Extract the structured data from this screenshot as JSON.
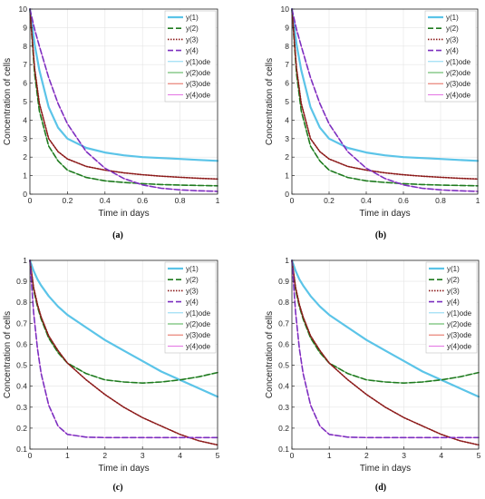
{
  "legend_entries": [
    "y(1)",
    "y(2)",
    "y(3)",
    "y(4)",
    "y(1)ode",
    "y(2)ode",
    "y(3)ode",
    "y(4)ode"
  ],
  "series_style": {
    "colors": [
      "#5bc4e8",
      "#1f7a1f",
      "#8b1a1a",
      "#7b2fbf",
      "#76d0f0",
      "#4caf50",
      "#e05040",
      "#e060e0"
    ],
    "dashes": [
      "",
      "6,3",
      "1.5,1.5",
      "6,3",
      "",
      "",
      "",
      ""
    ]
  },
  "chart_data": [
    {
      "type": "line",
      "caption": "(a)",
      "xlabel": "Time in days",
      "ylabel": "Concentration of cells",
      "xlim": [
        0,
        1
      ],
      "ylim": [
        0,
        10
      ],
      "xticks": [
        "0",
        "0.2",
        "0.4",
        "0.6",
        "0.8",
        "1"
      ],
      "yticks": [
        "0",
        "1",
        "2",
        "3",
        "4",
        "5",
        "6",
        "7",
        "8",
        "9",
        "10"
      ],
      "grid": true,
      "legend": "top-right",
      "x": [
        0,
        0.025,
        0.05,
        0.1,
        0.15,
        0.2,
        0.3,
        0.4,
        0.5,
        0.6,
        0.7,
        0.8,
        0.9,
        1.0
      ],
      "series": [
        {
          "name": "y(1)",
          "values": [
            10,
            8.1,
            6.7,
            4.7,
            3.6,
            3.0,
            2.5,
            2.25,
            2.1,
            2.0,
            1.95,
            1.9,
            1.85,
            1.8
          ]
        },
        {
          "name": "y(2)",
          "values": [
            10,
            6.5,
            4.5,
            2.6,
            1.8,
            1.3,
            0.9,
            0.72,
            0.63,
            0.57,
            0.52,
            0.49,
            0.47,
            0.45
          ]
        },
        {
          "name": "y(3)",
          "values": [
            10,
            6.8,
            4.9,
            3.0,
            2.3,
            1.9,
            1.5,
            1.3,
            1.15,
            1.05,
            0.97,
            0.91,
            0.86,
            0.82
          ]
        },
        {
          "name": "y(4)",
          "values": [
            10,
            8.9,
            8.0,
            6.3,
            4.9,
            3.8,
            2.3,
            1.4,
            0.85,
            0.5,
            0.32,
            0.23,
            0.18,
            0.15
          ]
        },
        {
          "name": "y(1)ode",
          "values": [
            10,
            8.1,
            6.7,
            4.7,
            3.6,
            3.0,
            2.5,
            2.25,
            2.1,
            2.0,
            1.95,
            1.9,
            1.85,
            1.8
          ]
        },
        {
          "name": "y(2)ode",
          "values": [
            10,
            6.5,
            4.5,
            2.6,
            1.8,
            1.3,
            0.9,
            0.72,
            0.63,
            0.57,
            0.52,
            0.49,
            0.47,
            0.45
          ]
        },
        {
          "name": "y(3)ode",
          "values": [
            10,
            6.8,
            4.9,
            3.0,
            2.3,
            1.9,
            1.5,
            1.3,
            1.15,
            1.05,
            0.97,
            0.91,
            0.86,
            0.82
          ]
        },
        {
          "name": "y(4)ode",
          "values": [
            10,
            8.9,
            8.0,
            6.3,
            4.9,
            3.8,
            2.3,
            1.4,
            0.85,
            0.5,
            0.32,
            0.23,
            0.18,
            0.15
          ]
        }
      ]
    },
    {
      "type": "line",
      "caption": "(b)",
      "xlabel": "Time in days",
      "ylabel": "Concentration of cells",
      "xlim": [
        0,
        1
      ],
      "ylim": [
        0,
        10
      ],
      "xticks": [
        "0",
        "0.2",
        "0.4",
        "0.6",
        "0.8",
        "1"
      ],
      "yticks": [
        "0",
        "1",
        "2",
        "3",
        "4",
        "5",
        "6",
        "7",
        "8",
        "9",
        "10"
      ],
      "grid": true,
      "legend": "top-right",
      "x": [
        0,
        0.025,
        0.05,
        0.1,
        0.15,
        0.2,
        0.3,
        0.4,
        0.5,
        0.6,
        0.7,
        0.8,
        0.9,
        1.0
      ],
      "series": [
        {
          "name": "y(1)",
          "values": [
            10,
            8.1,
            6.7,
            4.7,
            3.6,
            3.0,
            2.5,
            2.25,
            2.1,
            2.0,
            1.95,
            1.9,
            1.85,
            1.8
          ]
        },
        {
          "name": "y(2)",
          "values": [
            10,
            6.5,
            4.5,
            2.6,
            1.8,
            1.3,
            0.9,
            0.72,
            0.63,
            0.57,
            0.52,
            0.49,
            0.47,
            0.45
          ]
        },
        {
          "name": "y(3)",
          "values": [
            10,
            6.8,
            4.9,
            3.0,
            2.3,
            1.9,
            1.5,
            1.3,
            1.15,
            1.05,
            0.97,
            0.91,
            0.86,
            0.82
          ]
        },
        {
          "name": "y(4)",
          "values": [
            10,
            8.9,
            8.0,
            6.3,
            4.9,
            3.8,
            2.3,
            1.4,
            0.85,
            0.5,
            0.32,
            0.23,
            0.18,
            0.15
          ]
        },
        {
          "name": "y(1)ode",
          "values": [
            10,
            8.1,
            6.7,
            4.7,
            3.6,
            3.0,
            2.5,
            2.25,
            2.1,
            2.0,
            1.95,
            1.9,
            1.85,
            1.8
          ]
        },
        {
          "name": "y(2)ode",
          "values": [
            10,
            6.5,
            4.5,
            2.6,
            1.8,
            1.3,
            0.9,
            0.72,
            0.63,
            0.57,
            0.52,
            0.49,
            0.47,
            0.45
          ]
        },
        {
          "name": "y(3)ode",
          "values": [
            10,
            6.8,
            4.9,
            3.0,
            2.3,
            1.9,
            1.5,
            1.3,
            1.15,
            1.05,
            0.97,
            0.91,
            0.86,
            0.82
          ]
        },
        {
          "name": "y(4)ode",
          "values": [
            10,
            8.9,
            8.0,
            6.3,
            4.9,
            3.8,
            2.3,
            1.4,
            0.85,
            0.5,
            0.32,
            0.23,
            0.18,
            0.15
          ]
        }
      ]
    },
    {
      "type": "line",
      "caption": "(c)",
      "xlabel": "Time in days",
      "ylabel": "Concentration of cells",
      "xlim": [
        0,
        5
      ],
      "ylim": [
        0.1,
        1
      ],
      "xticks": [
        "0",
        "1",
        "2",
        "3",
        "4",
        "5"
      ],
      "yticks": [
        "0.1",
        "0.2",
        "0.3",
        "0.4",
        "0.5",
        "0.6",
        "0.7",
        "0.8",
        "0.9",
        "1"
      ],
      "grid": true,
      "legend": "top-right",
      "x": [
        0,
        0.1,
        0.2,
        0.3,
        0.5,
        0.75,
        1,
        1.5,
        2,
        2.5,
        3,
        3.5,
        4,
        4.5,
        5
      ],
      "series": [
        {
          "name": "y(1)",
          "values": [
            1.0,
            0.95,
            0.91,
            0.88,
            0.83,
            0.78,
            0.74,
            0.68,
            0.62,
            0.57,
            0.52,
            0.47,
            0.43,
            0.39,
            0.35
          ]
        },
        {
          "name": "y(2)",
          "values": [
            1.0,
            0.86,
            0.78,
            0.72,
            0.63,
            0.56,
            0.51,
            0.46,
            0.43,
            0.42,
            0.415,
            0.42,
            0.43,
            0.445,
            0.465
          ]
        },
        {
          "name": "y(3)",
          "values": [
            1.0,
            0.87,
            0.79,
            0.73,
            0.64,
            0.57,
            0.51,
            0.43,
            0.36,
            0.3,
            0.25,
            0.21,
            0.17,
            0.14,
            0.12
          ]
        },
        {
          "name": "y(4)",
          "values": [
            1.0,
            0.75,
            0.58,
            0.46,
            0.31,
            0.21,
            0.17,
            0.157,
            0.155,
            0.155,
            0.155,
            0.155,
            0.155,
            0.155,
            0.155
          ]
        },
        {
          "name": "y(1)ode",
          "values": [
            1.0,
            0.95,
            0.91,
            0.88,
            0.83,
            0.78,
            0.74,
            0.68,
            0.62,
            0.57,
            0.52,
            0.47,
            0.43,
            0.39,
            0.35
          ]
        },
        {
          "name": "y(2)ode",
          "values": [
            1.0,
            0.86,
            0.78,
            0.72,
            0.63,
            0.56,
            0.51,
            0.46,
            0.43,
            0.42,
            0.415,
            0.42,
            0.43,
            0.445,
            0.465
          ]
        },
        {
          "name": "y(3)ode",
          "values": [
            1.0,
            0.87,
            0.79,
            0.73,
            0.64,
            0.57,
            0.51,
            0.43,
            0.36,
            0.3,
            0.25,
            0.21,
            0.17,
            0.14,
            0.12
          ]
        },
        {
          "name": "y(4)ode",
          "values": [
            1.0,
            0.75,
            0.58,
            0.46,
            0.31,
            0.21,
            0.17,
            0.157,
            0.155,
            0.155,
            0.155,
            0.155,
            0.155,
            0.155,
            0.155
          ]
        }
      ]
    },
    {
      "type": "line",
      "caption": "(d)",
      "xlabel": "Time in days",
      "ylabel": "Concentration of cells",
      "xlim": [
        0,
        5
      ],
      "ylim": [
        0.1,
        1
      ],
      "xticks": [
        "0",
        "1",
        "2",
        "3",
        "4",
        "5"
      ],
      "yticks": [
        "0.1",
        "0.2",
        "0.3",
        "0.4",
        "0.5",
        "0.6",
        "0.7",
        "0.8",
        "0.9",
        "1"
      ],
      "grid": true,
      "legend": "top-right",
      "x": [
        0,
        0.1,
        0.2,
        0.3,
        0.5,
        0.75,
        1,
        1.5,
        2,
        2.5,
        3,
        3.5,
        4,
        4.5,
        5
      ],
      "series": [
        {
          "name": "y(1)",
          "values": [
            1.0,
            0.95,
            0.91,
            0.88,
            0.83,
            0.78,
            0.74,
            0.68,
            0.62,
            0.57,
            0.52,
            0.47,
            0.43,
            0.39,
            0.35
          ]
        },
        {
          "name": "y(2)",
          "values": [
            1.0,
            0.86,
            0.78,
            0.72,
            0.63,
            0.56,
            0.51,
            0.46,
            0.43,
            0.42,
            0.415,
            0.42,
            0.43,
            0.445,
            0.465
          ]
        },
        {
          "name": "y(3)",
          "values": [
            1.0,
            0.87,
            0.79,
            0.73,
            0.64,
            0.57,
            0.51,
            0.43,
            0.36,
            0.3,
            0.25,
            0.21,
            0.17,
            0.14,
            0.12
          ]
        },
        {
          "name": "y(4)",
          "values": [
            1.0,
            0.75,
            0.58,
            0.46,
            0.31,
            0.21,
            0.17,
            0.157,
            0.155,
            0.155,
            0.155,
            0.155,
            0.155,
            0.155,
            0.155
          ]
        },
        {
          "name": "y(1)ode",
          "values": [
            1.0,
            0.95,
            0.91,
            0.88,
            0.83,
            0.78,
            0.74,
            0.68,
            0.62,
            0.57,
            0.52,
            0.47,
            0.43,
            0.39,
            0.35
          ]
        },
        {
          "name": "y(2)ode",
          "values": [
            1.0,
            0.86,
            0.78,
            0.72,
            0.63,
            0.56,
            0.51,
            0.46,
            0.43,
            0.42,
            0.415,
            0.42,
            0.43,
            0.445,
            0.465
          ]
        },
        {
          "name": "y(3)ode",
          "values": [
            1.0,
            0.87,
            0.79,
            0.73,
            0.64,
            0.57,
            0.51,
            0.43,
            0.36,
            0.3,
            0.25,
            0.21,
            0.17,
            0.14,
            0.12
          ]
        },
        {
          "name": "y(4)ode",
          "values": [
            1.0,
            0.75,
            0.58,
            0.46,
            0.31,
            0.21,
            0.17,
            0.157,
            0.155,
            0.155,
            0.155,
            0.155,
            0.155,
            0.155,
            0.155
          ]
        }
      ]
    }
  ]
}
